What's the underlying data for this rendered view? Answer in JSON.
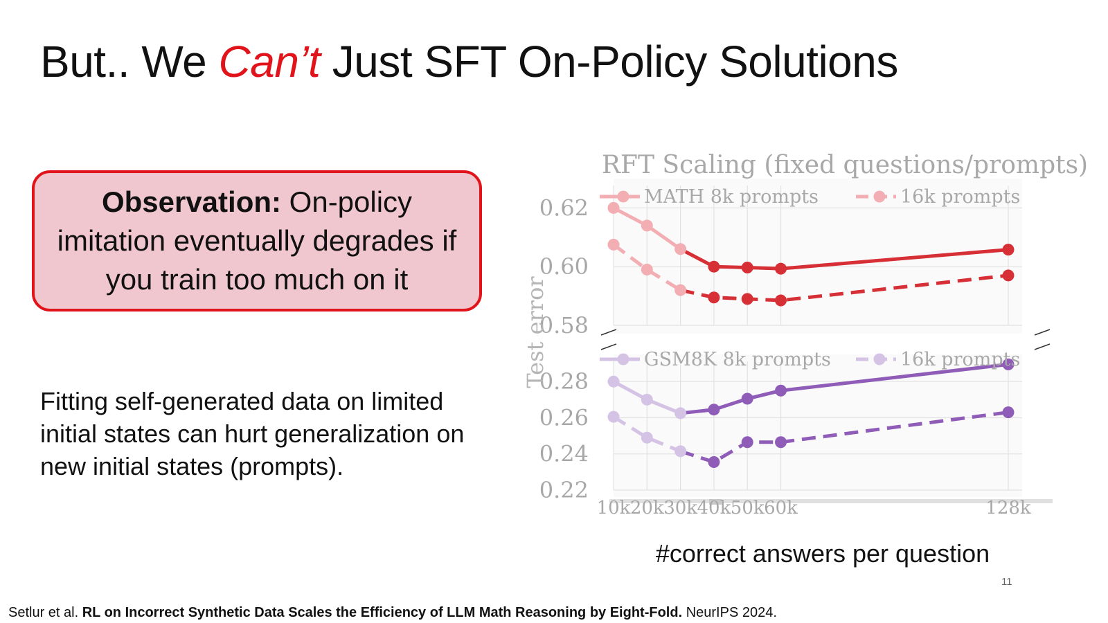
{
  "slide": {
    "title_before": "But.. We ",
    "title_accent": "Can’t",
    "title_after": " Just SFT On-Policy Solutions",
    "observation_bold": "Observation:",
    "observation_text": " On-policy imitation eventually degrades if you train too much on it",
    "body_text": "Fitting self-generated data on limited initial states can hurt generalization on new initial states (prompts).",
    "page_number": "11",
    "citation_authors": "Setlur et al. ",
    "citation_title": "RL on Incorrect Synthetic Data Scales the Efficiency of LLM Math Reasoning by Eight-Fold.",
    "citation_venue": " NeurIPS 2024."
  },
  "chart_data": {
    "type": "line",
    "title": "RFT Scaling (fixed questions/prompts)",
    "xlabel": "#correct answers per question",
    "ylabel": "Test error",
    "x": [
      10,
      20,
      30,
      40,
      50,
      60,
      128
    ],
    "x_tick_labels": [
      "10k",
      "20k",
      "30k",
      "40k",
      "50k",
      "60k",
      "128k"
    ],
    "grid": true,
    "panels": [
      {
        "name": "MATH",
        "ylim": [
          0.58,
          0.63
        ],
        "y_ticks": [
          0.58,
          0.6,
          0.62
        ],
        "y_tick_labels": [
          "0.58",
          "0.60",
          "0.62"
        ],
        "legend": [
          {
            "label": "MATH 8k prompts",
            "series": 0
          },
          {
            "label": "16k prompts",
            "series": 1
          }
        ],
        "series": [
          {
            "name": "MATH 8k prompts",
            "style": "solid",
            "color": "#d62f35",
            "values": [
              0.62,
              0.614,
              0.606,
              0.6,
              0.5997,
              0.5993,
              0.6058
            ]
          },
          {
            "name": "16k prompts",
            "style": "dashed",
            "color": "#d62f35",
            "values": [
              0.6075,
              0.599,
              0.592,
              0.5895,
              0.589,
              0.5885,
              0.597
            ]
          }
        ]
      },
      {
        "name": "GSM8K",
        "ylim": [
          0.22,
          0.295
        ],
        "y_ticks": [
          0.22,
          0.24,
          0.26,
          0.28
        ],
        "y_tick_labels": [
          "0.22",
          "0.24",
          "0.26",
          "0.28"
        ],
        "legend": [
          {
            "label": "GSM8K 8k prompts",
            "series": 0
          },
          {
            "label": "16k prompts",
            "series": 1
          }
        ],
        "series": [
          {
            "name": "GSM8K 8k prompts",
            "style": "solid",
            "color": "#8f5cb8",
            "values": [
              0.28,
              0.27,
              0.2625,
              0.2645,
              0.2705,
              0.275,
              0.2895
            ]
          },
          {
            "name": "16k prompts",
            "style": "dashed",
            "color": "#8f5cb8",
            "values": [
              0.2605,
              0.249,
              0.2415,
              0.2355,
              0.2465,
              0.2465,
              0.263
            ]
          }
        ]
      }
    ]
  }
}
